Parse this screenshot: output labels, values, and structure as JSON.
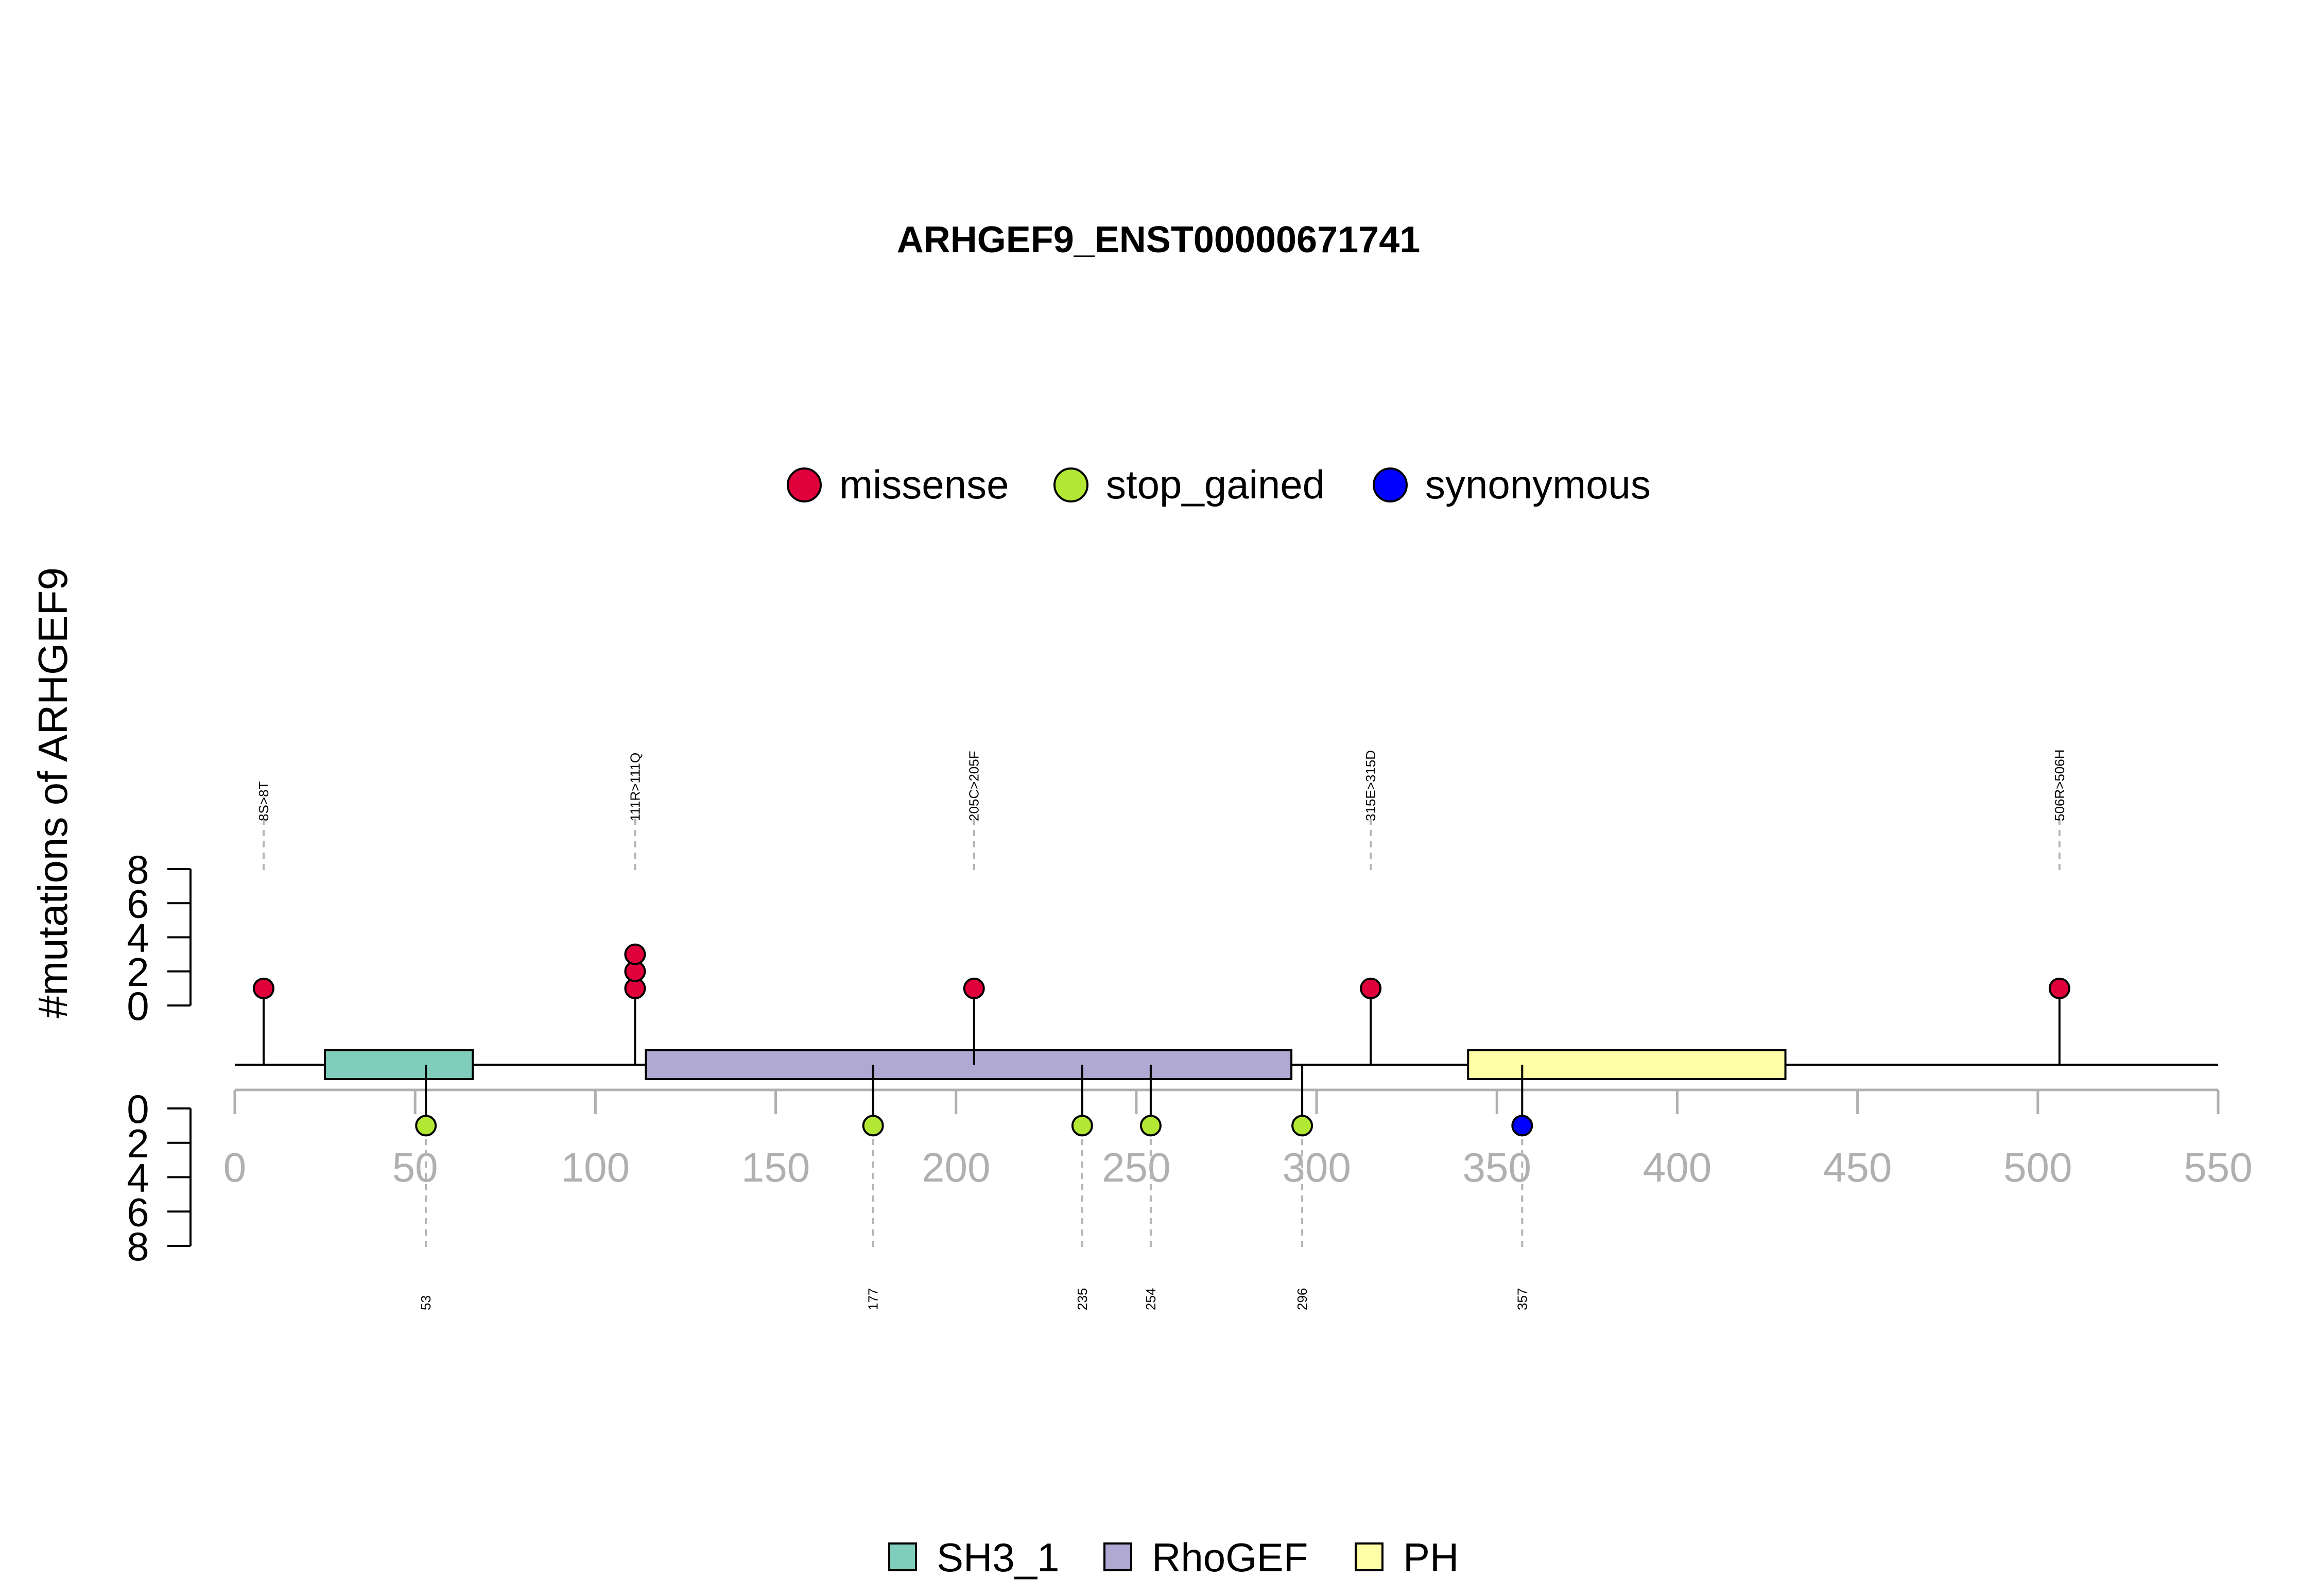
{
  "chart_data": {
    "type": "lollipop",
    "title": "ARHGEF9_ENST00000671741",
    "ylabel": "#mutations of ARHGEF9",
    "xlim": [
      0,
      550
    ],
    "x_ticks": [
      "0",
      "50",
      "100",
      "150",
      "200",
      "250",
      "300",
      "350",
      "400",
      "450",
      "500",
      "550"
    ],
    "y_ticks_top": [
      "0",
      "2",
      "4",
      "6",
      "8"
    ],
    "y_ticks_bottom": [
      "0",
      "2",
      "4",
      "6",
      "8"
    ],
    "ylim_top": [
      0,
      8
    ],
    "ylim_bottom": [
      0,
      8
    ],
    "mutation_legend": [
      {
        "label": "missense",
        "color": "#E0003C"
      },
      {
        "label": "stop_gained",
        "color": "#B2E834"
      },
      {
        "label": "synonymous",
        "color": "#0000FF"
      }
    ],
    "domain_legend": [
      {
        "label": "SH3_1",
        "color": "#7FCDBB"
      },
      {
        "label": "RhoGEF",
        "color": "#B0A9D4"
      },
      {
        "label": "PH",
        "color": "#FFFFA8"
      }
    ],
    "domains": [
      {
        "name": "SH3_1",
        "start": 25,
        "end": 66
      },
      {
        "name": "RhoGEF",
        "start": 114,
        "end": 293
      },
      {
        "name": "PH",
        "start": 342,
        "end": 430
      }
    ],
    "mutations_top": [
      {
        "position": 8,
        "count": 1,
        "type": "missense",
        "label": "8S>8T"
      },
      {
        "position": 111,
        "count": 3,
        "type": "missense",
        "label": "111R>111Q"
      },
      {
        "position": 205,
        "count": 1,
        "type": "missense",
        "label": "205C>205F"
      },
      {
        "position": 315,
        "count": 1,
        "type": "missense",
        "label": "315E>315D"
      },
      {
        "position": 506,
        "count": 1,
        "type": "missense",
        "label": "506R>506H"
      }
    ],
    "mutations_bottom": [
      {
        "position": 53,
        "count": 1,
        "type": "stop_gained",
        "label": "53"
      },
      {
        "position": 177,
        "count": 1,
        "type": "stop_gained",
        "label": "177"
      },
      {
        "position": 235,
        "count": 1,
        "type": "stop_gained",
        "label": "235"
      },
      {
        "position": 254,
        "count": 1,
        "type": "stop_gained",
        "label": "254"
      },
      {
        "position": 296,
        "count": 1,
        "type": "stop_gained",
        "label": "296"
      },
      {
        "position": 357,
        "count": 1,
        "type": "synonymous",
        "label": "357"
      }
    ]
  }
}
